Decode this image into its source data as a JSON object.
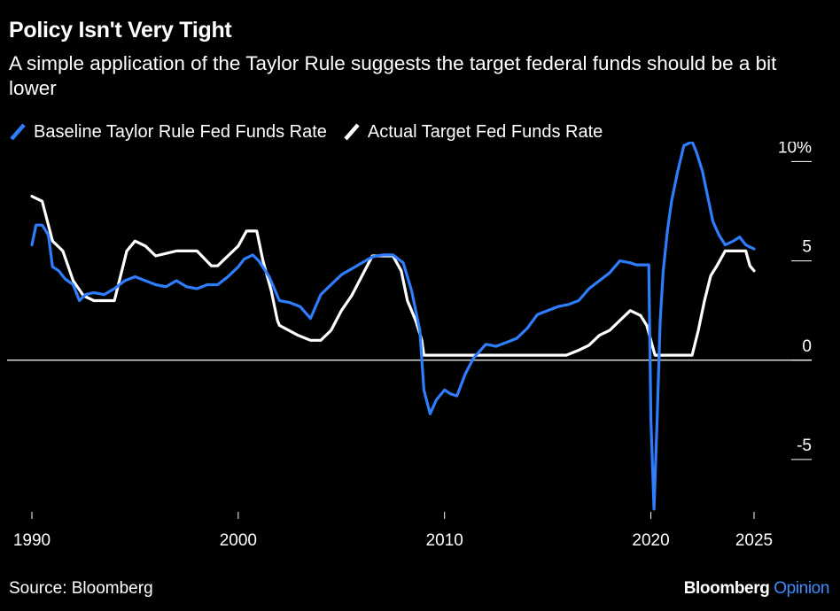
{
  "header": {
    "title": "Policy Isn't Very Tight",
    "subtitle": "A simple application of the Taylor Rule suggests the target federal funds should be a bit lower"
  },
  "footer": {
    "source": "Source: Bloomberg",
    "brand_main": "Bloomberg",
    "brand_sub": "Opinion"
  },
  "chart_data": {
    "type": "line",
    "title": "Policy Isn't Very Tight",
    "subtitle": "A simple application of the Taylor Rule suggests the target federal funds should be a bit lower",
    "xlim": [
      1990,
      2025
    ],
    "ylim": [
      -7.5,
      11
    ],
    "y_ticks": [
      10,
      5,
      0,
      -5
    ],
    "y_tick_labels": [
      "10%",
      "5",
      "0",
      "-5"
    ],
    "x_ticks": [
      1990,
      2000,
      2010,
      2020,
      2025
    ],
    "x_tick_labels": [
      "1990",
      "2000",
      "2010",
      "2020",
      "2025"
    ],
    "grid": false,
    "zero_line": true,
    "legend_position": "top-left",
    "series": [
      {
        "name": "Baseline Taylor Rule Fed Funds Rate",
        "color": "#2e7dfd",
        "x": [
          1990.0,
          1990.2,
          1990.5,
          1990.8,
          1991.0,
          1991.3,
          1991.6,
          1992.0,
          1992.3,
          1992.6,
          1993.0,
          1993.5,
          1994.0,
          1994.5,
          1995.0,
          1995.5,
          1996.0,
          1996.5,
          1997.0,
          1997.5,
          1998.0,
          1998.5,
          1999.0,
          1999.5,
          2000.0,
          2000.3,
          2000.7,
          2001.0,
          2001.5,
          2002.0,
          2002.5,
          2003.0,
          2003.5,
          2004.0,
          2004.5,
          2005.0,
          2005.5,
          2006.0,
          2006.5,
          2007.0,
          2007.5,
          2008.0,
          2008.4,
          2008.8,
          2009.0,
          2009.3,
          2009.6,
          2010.0,
          2010.3,
          2010.6,
          2011.0,
          2011.4,
          2012.0,
          2012.5,
          2013.0,
          2013.5,
          2014.0,
          2014.5,
          2015.0,
          2015.5,
          2016.0,
          2016.5,
          2017.0,
          2017.5,
          2018.0,
          2018.5,
          2019.0,
          2019.3,
          2019.6,
          2019.9,
          2020.0,
          2020.15,
          2020.3,
          2020.45,
          2020.6,
          2020.8,
          2021.0,
          2021.3,
          2021.6,
          2022.0,
          2022.2,
          2022.5,
          2022.8,
          2023.0,
          2023.3,
          2023.6,
          2024.0,
          2024.3,
          2024.6,
          2024.8,
          2025.0
        ],
        "values": [
          5.8,
          6.8,
          6.8,
          6.3,
          4.7,
          4.5,
          4.1,
          3.8,
          3.0,
          3.3,
          3.4,
          3.3,
          3.6,
          4.0,
          4.2,
          4.0,
          3.8,
          3.7,
          4.0,
          3.7,
          3.6,
          3.8,
          3.8,
          4.2,
          4.7,
          5.1,
          5.3,
          5.0,
          4.2,
          3.0,
          2.9,
          2.7,
          2.1,
          3.3,
          3.8,
          4.3,
          4.6,
          4.9,
          5.2,
          5.3,
          5.3,
          4.9,
          3.5,
          1.5,
          -1.5,
          -2.7,
          -2.0,
          -1.5,
          -1.7,
          -1.8,
          -0.7,
          0.1,
          0.8,
          0.7,
          0.9,
          1.1,
          1.6,
          2.3,
          2.5,
          2.7,
          2.8,
          3.0,
          3.6,
          4.0,
          4.4,
          5.0,
          4.9,
          4.8,
          4.8,
          4.8,
          -3.0,
          -7.5,
          -3.0,
          2.0,
          4.5,
          6.5,
          8.0,
          9.5,
          10.8,
          11.0,
          10.5,
          9.5,
          8.0,
          7.0,
          6.3,
          5.8,
          6.0,
          6.2,
          5.8,
          5.7,
          5.6
        ]
      },
      {
        "name": "Actual Target Fed Funds Rate",
        "color": "#ffffff",
        "x": [
          1990.0,
          1990.5,
          1991.0,
          1991.5,
          1992.0,
          1992.5,
          1993.0,
          1994.0,
          1994.3,
          1994.6,
          1995.0,
          1995.5,
          1996.0,
          1997.0,
          1998.0,
          1998.7,
          1999.0,
          1999.5,
          2000.0,
          2000.4,
          2000.9,
          2001.2,
          2001.6,
          2001.9,
          2002.0,
          2002.9,
          2003.5,
          2004.0,
          2004.5,
          2005.0,
          2005.5,
          2006.0,
          2006.5,
          2007.0,
          2007.5,
          2007.9,
          2008.2,
          2008.6,
          2008.9,
          2009.0,
          2010.0,
          2012.0,
          2014.0,
          2015.9,
          2016.5,
          2017.0,
          2017.5,
          2018.0,
          2018.5,
          2019.0,
          2019.5,
          2019.8,
          2020.2,
          2022.0,
          2022.3,
          2022.6,
          2022.9,
          2023.2,
          2023.6,
          2024.0,
          2024.6,
          2024.8,
          2025.0
        ],
        "values": [
          8.25,
          8.0,
          6.0,
          5.5,
          4.0,
          3.25,
          3.0,
          3.0,
          4.25,
          5.5,
          6.0,
          5.75,
          5.25,
          5.5,
          5.5,
          4.75,
          4.75,
          5.25,
          5.75,
          6.5,
          6.5,
          5.0,
          3.5,
          2.0,
          1.75,
          1.25,
          1.0,
          1.0,
          1.5,
          2.5,
          3.25,
          4.25,
          5.25,
          5.25,
          5.25,
          4.5,
          3.0,
          2.0,
          1.0,
          0.25,
          0.25,
          0.25,
          0.25,
          0.25,
          0.5,
          0.75,
          1.25,
          1.5,
          2.0,
          2.5,
          2.25,
          1.75,
          0.25,
          0.25,
          1.5,
          3.0,
          4.25,
          4.75,
          5.5,
          5.5,
          5.5,
          4.75,
          4.5
        ]
      }
    ]
  }
}
